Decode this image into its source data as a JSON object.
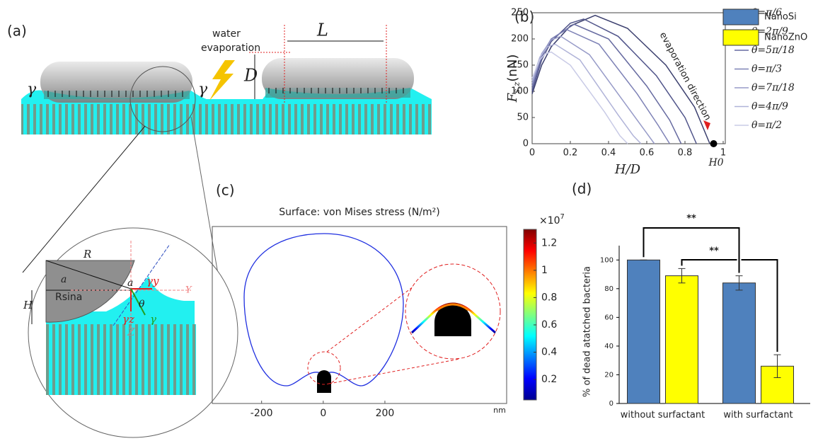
{
  "panel_labels": [
    "(a)",
    "(b)",
    "(c)",
    "(d)"
  ],
  "diagram_a": {
    "labels": [
      "water",
      "evaporation",
      "L",
      "D",
      "γ",
      "γ",
      "R",
      "a",
      "a",
      "Rsina",
      "H",
      "θ",
      "γy",
      "Y",
      "γz",
      "γ",
      "Z"
    ]
  },
  "chart_data": [
    {
      "type": "line",
      "xlabel": "H/D",
      "ylabel": "F",
      "ylabel_sub": "s,z",
      "ylabel_unit": "(nN)",
      "xlim": [
        0,
        1
      ],
      "ylim": [
        0,
        250
      ],
      "xticks": [
        0,
        0.2,
        0.4,
        0.6,
        0.8,
        1
      ],
      "yticks": [
        0,
        50,
        100,
        150,
        200,
        250
      ],
      "annotation": "evaporation direction",
      "end_label": "H0",
      "marker": {
        "x": 0.95,
        "y": 0
      },
      "series": [
        {
          "name": "θ=π/6",
          "color": "#3b3f6e",
          "x": [
            0,
            0.05,
            0.1,
            0.2,
            0.33,
            0.5,
            0.7,
            0.85,
            0.93
          ],
          "values": [
            95,
            150,
            185,
            225,
            245,
            220,
            150,
            70,
            0
          ]
        },
        {
          "name": "θ=2π/9",
          "color": "#50548a",
          "x": [
            0,
            0.05,
            0.1,
            0.2,
            0.27,
            0.45,
            0.65,
            0.8,
            0.86
          ],
          "values": [
            100,
            160,
            195,
            230,
            238,
            205,
            130,
            50,
            0
          ]
        },
        {
          "name": "θ=5π/18",
          "color": "#666aa0",
          "x": [
            0,
            0.05,
            0.1,
            0.22,
            0.4,
            0.6,
            0.72,
            0.78
          ],
          "values": [
            105,
            165,
            200,
            228,
            200,
            110,
            45,
            0
          ]
        },
        {
          "name": "θ=π/3",
          "color": "#7e82b6",
          "x": [
            0,
            0.05,
            0.1,
            0.18,
            0.35,
            0.55,
            0.66,
            0.72
          ],
          "values": [
            110,
            170,
            200,
            218,
            190,
            95,
            35,
            0
          ]
        },
        {
          "name": "θ=7π/18",
          "color": "#979bc8",
          "x": [
            0,
            0.05,
            0.1,
            0.15,
            0.3,
            0.5,
            0.6,
            0.64
          ],
          "values": [
            115,
            172,
            198,
            205,
            170,
            70,
            20,
            0
          ]
        },
        {
          "name": "θ=4π/9",
          "color": "#b0b3d8",
          "x": [
            0,
            0.04,
            0.08,
            0.12,
            0.25,
            0.45,
            0.53,
            0.57
          ],
          "values": [
            120,
            165,
            185,
            190,
            160,
            55,
            15,
            0
          ]
        },
        {
          "name": "θ=π/2",
          "color": "#c9cbe6",
          "x": [
            0,
            0.04,
            0.07,
            0.1,
            0.2,
            0.38,
            0.46,
            0.5
          ],
          "values": [
            125,
            160,
            172,
            175,
            150,
            60,
            15,
            0
          ]
        }
      ]
    },
    {
      "type": "heatmap",
      "title": "Surface: von Mises stress (N/m²)",
      "xlim": [
        -360,
        595
      ],
      "xticks": [
        -200,
        0,
        200
      ],
      "xunit": "nm",
      "colorbar": {
        "lim": [
          0.05,
          1.3
        ],
        "ticks": [
          0.2,
          0.4,
          0.6,
          0.8,
          1,
          1.2
        ],
        "scale_label": "×10",
        "scale_exponent": "7"
      }
    },
    {
      "type": "bar",
      "ylabel": "% of dead atatched bacteria",
      "categories": [
        "without surfactant",
        "with surfactant"
      ],
      "ylim": [
        0,
        110
      ],
      "yticks": [
        0,
        20,
        40,
        60,
        80,
        100
      ],
      "series": [
        {
          "name": "NanoSi",
          "color": "#4f81bd",
          "values": [
            100,
            84
          ],
          "errors": [
            0,
            5
          ]
        },
        {
          "name": "NanoZnO",
          "color": "#ffff00",
          "values": [
            89,
            26
          ],
          "errors": [
            5,
            8
          ]
        }
      ],
      "significance": [
        "**",
        "**"
      ]
    }
  ]
}
